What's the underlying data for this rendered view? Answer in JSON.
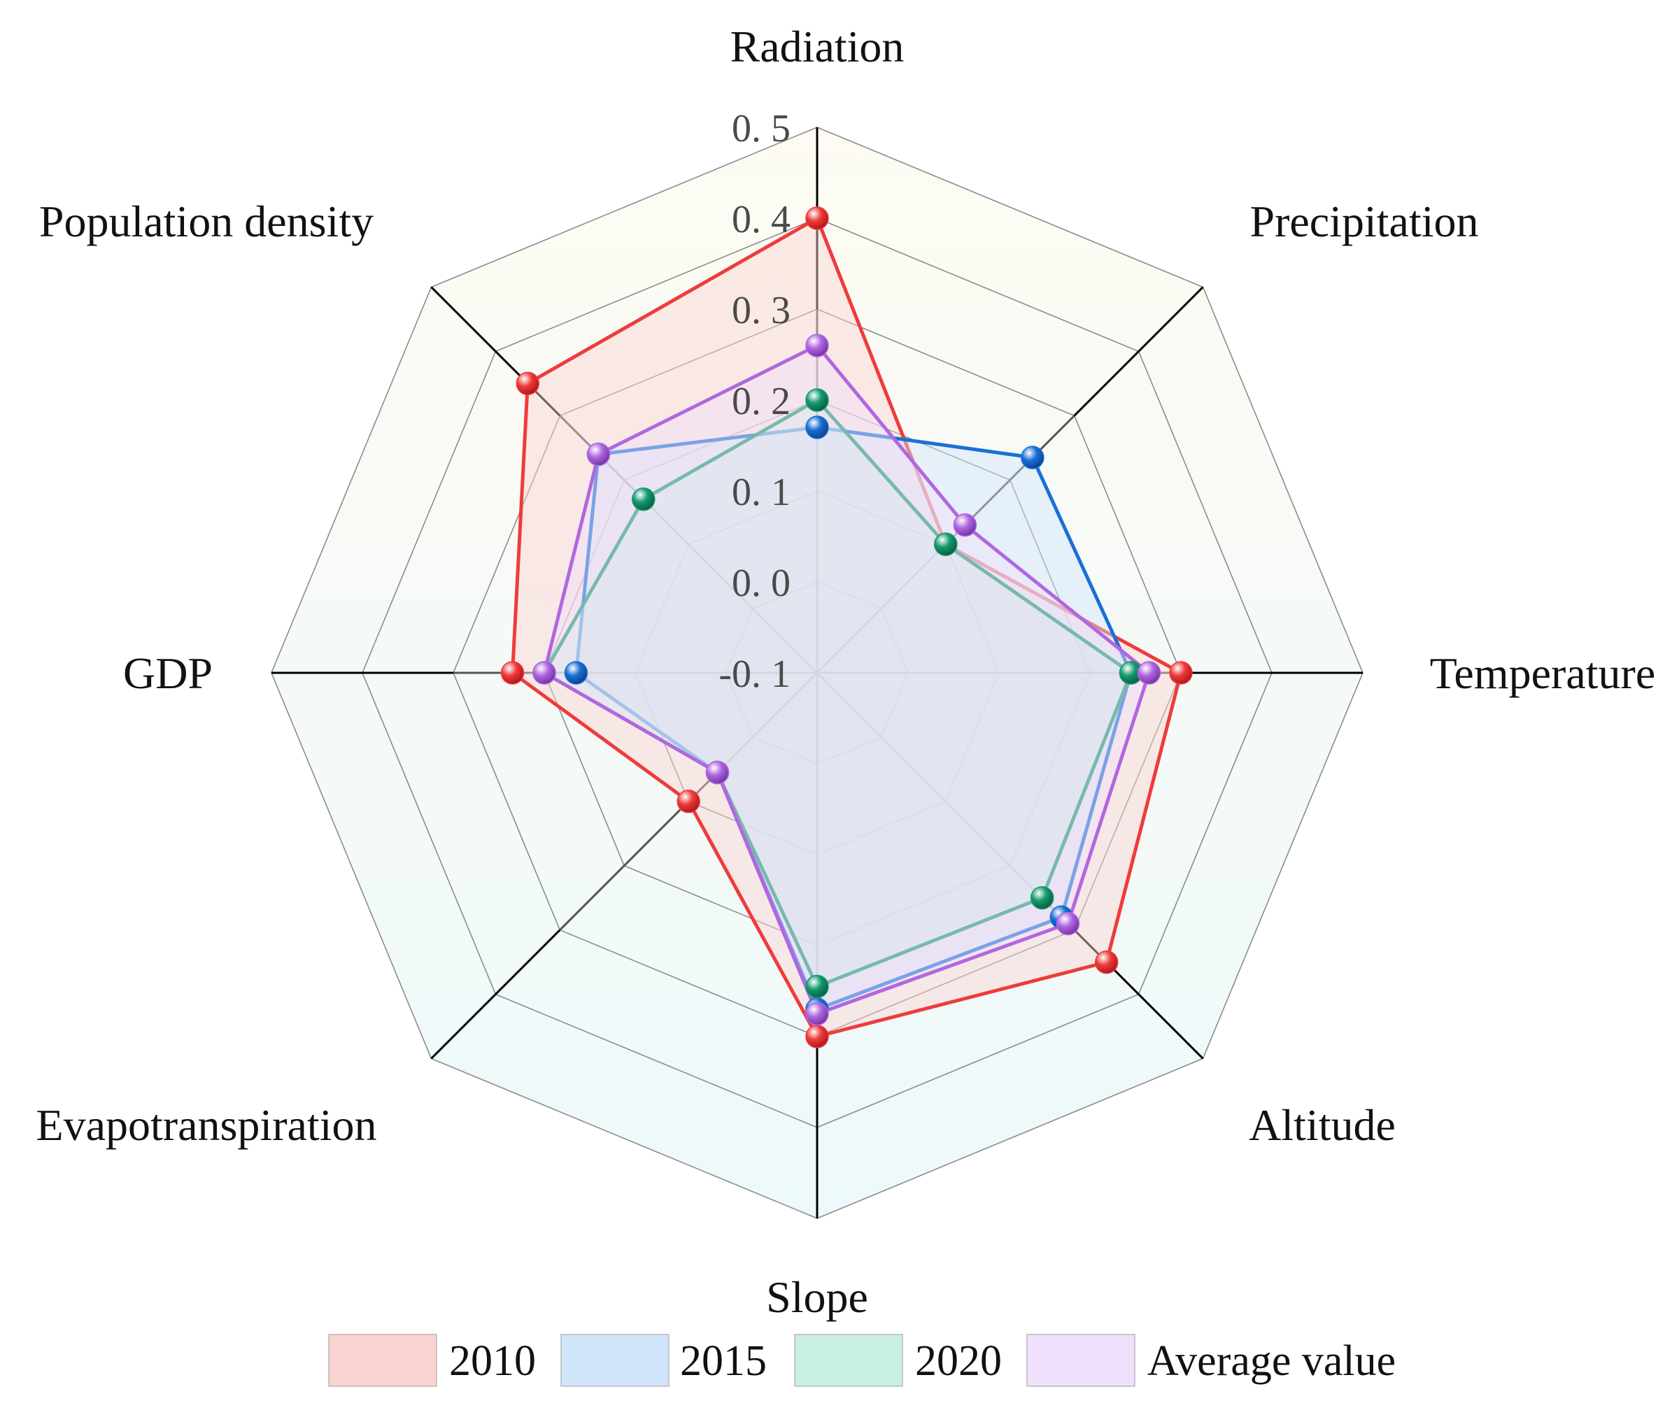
{
  "chart_data": {
    "type": "radar",
    "axes": [
      "Radiation",
      "Precipitation",
      "Temperature",
      "Altitude",
      "Slope",
      "Evapotranspiration",
      "GDP",
      "Population density"
    ],
    "radial_ticks": [
      "-0. 1",
      "0. 0",
      "0. 1",
      "0. 2",
      "0. 3",
      "0. 4",
      "0. 5"
    ],
    "rlim": [
      -0.1,
      0.5
    ],
    "series": [
      {
        "name": "2010",
        "color": "#ef3b3b",
        "fill": "#fbd3d1",
        "values": [
          0.4,
          0.1,
          0.3,
          0.35,
          0.3,
          0.1,
          0.235,
          0.35
        ]
      },
      {
        "name": "2015",
        "color": "#1a6fd6",
        "fill": "#d1e5fa",
        "values": [
          0.17,
          0.235,
          0.245,
          0.28,
          0.27,
          0.055,
          0.165,
          0.24
        ]
      },
      {
        "name": "2020",
        "color": "#159a6e",
        "fill": "#c8efdf",
        "values": [
          0.2,
          0.1,
          0.245,
          0.25,
          0.245,
          0.055,
          0.2,
          0.17
        ]
      },
      {
        "name": "Average value",
        "color": "#b067e0",
        "fill": "#efe0fb",
        "values": [
          0.26,
          0.13,
          0.265,
          0.29,
          0.275,
          0.055,
          0.2,
          0.24
        ]
      }
    ],
    "legend": {
      "position": "bottom",
      "labels": [
        "2010",
        "2015",
        "2020",
        "Average value"
      ]
    }
  }
}
